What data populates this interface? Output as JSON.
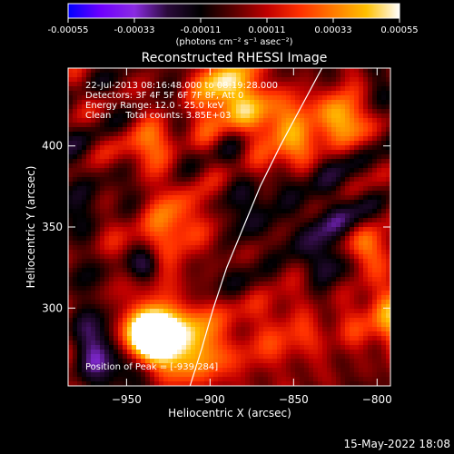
{
  "colorbar": {
    "tick_labels": [
      "-0.00055",
      "-0.00033",
      "-0.00011",
      "0.00011",
      "0.00033",
      "0.00055"
    ],
    "units_label": "(photons cm⁻² s⁻¹ asec⁻²)",
    "stops": [
      "#0000ff",
      "#6f00ff",
      "#8a2be2",
      "#2a0a3a",
      "#000000",
      "#5a0000",
      "#c00000",
      "#ff3000",
      "#ff7a00",
      "#ffc000",
      "#ffffff"
    ]
  },
  "chart_data": {
    "type": "heatmap",
    "title": "Reconstructed RHESSI Image",
    "xlabel": "Heliocentric X (arcsec)",
    "ylabel": "Heliocentric Y (arcsec)",
    "xlim": [
      -985,
      -792
    ],
    "ylim": [
      252,
      448
    ],
    "xticks": [
      -950,
      -900,
      -850,
      -800
    ],
    "yticks": [
      300,
      350,
      400
    ],
    "value_range": [
      -0.00055,
      0.00055
    ],
    "limb_curve": {
      "x": [
        -912,
        -905,
        -898,
        -890,
        -880,
        -870,
        -858,
        -845,
        -833
      ],
      "y": [
        252,
        275,
        300,
        325,
        350,
        375,
        400,
        425,
        448
      ]
    },
    "peak_position": [
      -939,
      284
    ],
    "annotations": [
      "22-Jul-2013 08:16:48.000 to 08:19:28.000",
      "Detectors: 3F 4F 5F 6F 7F 8F, Att 0",
      "Energy Range: 12.0 - 25.0 keV",
      "Clean     Total counts: 3.85E+03",
      "Position of Peak = [-939,284]"
    ]
  },
  "footer": {
    "timestamp": "15-May-2022 18:08"
  }
}
